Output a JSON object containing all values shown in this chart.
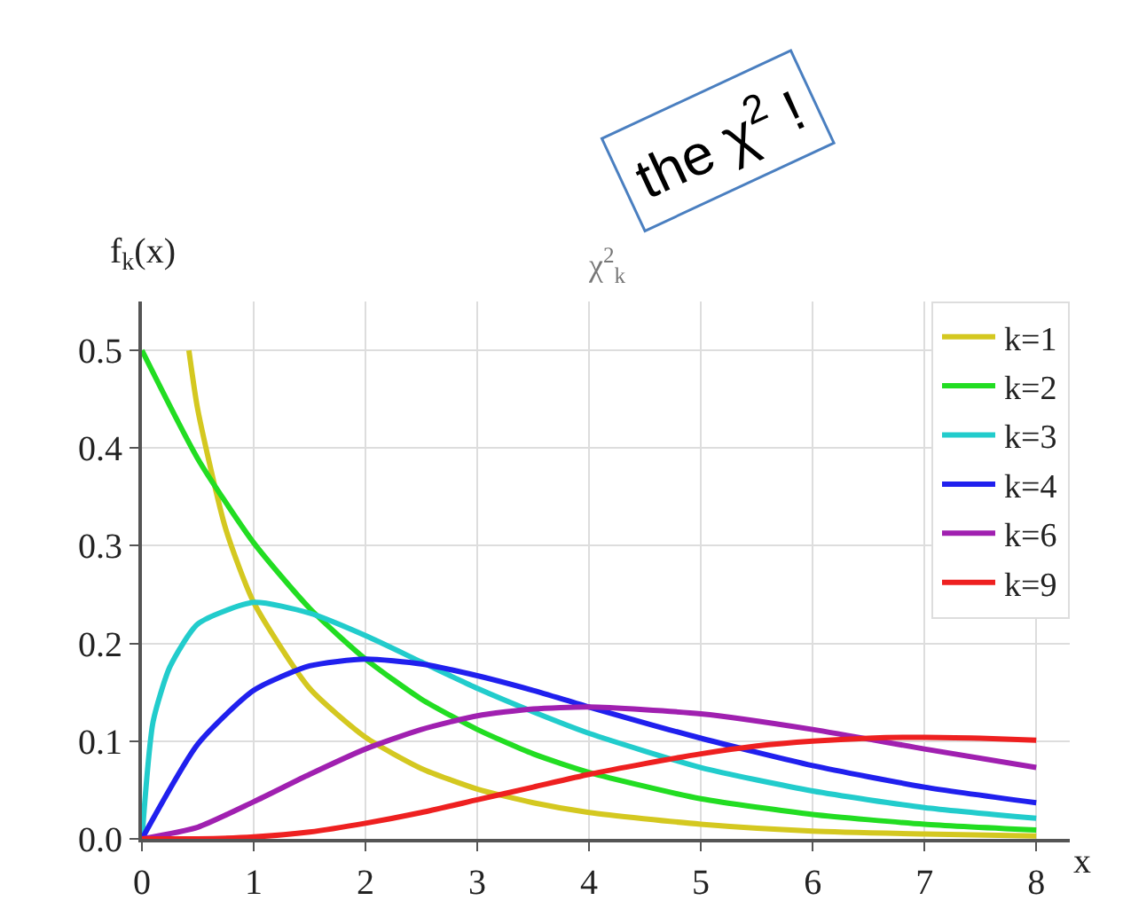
{
  "chart_data": {
    "type": "line",
    "title": "χ$^{2}$$_{k}$",
    "xlabel": "x",
    "ylabel": "f$_{k}$(x)",
    "annotations": [
      "the χ$^{2}$ !"
    ],
    "xlim": [
      0,
      8.3
    ],
    "ylim": [
      0,
      0.55
    ],
    "xticks": [
      0,
      1,
      2,
      3,
      4,
      5,
      6,
      7,
      8
    ],
    "yticks": [
      {
        "value": 0,
        "label": "0.0"
      },
      {
        "value": 0.1,
        "label": "0.1"
      },
      {
        "value": 0.2,
        "label": "0.2"
      },
      {
        "value": 0.3,
        "label": "0.3"
      },
      {
        "value": 0.4,
        "label": "0.4"
      },
      {
        "value": 0.5,
        "label": "0.5"
      }
    ],
    "grid": true,
    "legend": "top right",
    "marker": "none",
    "line_style": "solid",
    "series": [
      {
        "name": "k=1",
        "color": "#d4c820",
        "x": [
          0.42,
          0.5,
          0.75,
          1,
          1.5,
          2,
          2.5,
          3,
          3.5,
          4,
          5,
          6,
          7,
          8
        ],
        "values": [
          0.5,
          0.439,
          0.317,
          0.242,
          0.154,
          0.104,
          0.072,
          0.051,
          0.037,
          0.027,
          0.015,
          0.008,
          0.005,
          0.003
        ]
      },
      {
        "name": "k=2",
        "color": "#22dd22",
        "x": [
          0,
          0.5,
          1,
          1.5,
          2,
          2.5,
          3,
          3.5,
          4,
          5,
          6,
          7,
          8
        ],
        "values": [
          0.5,
          0.389,
          0.303,
          0.236,
          0.184,
          0.143,
          0.112,
          0.087,
          0.068,
          0.041,
          0.025,
          0.015,
          0.009
        ]
      },
      {
        "name": "k=3",
        "color": "#22cccc",
        "x": [
          0,
          0.1,
          0.25,
          0.5,
          1,
          1.5,
          2,
          2.5,
          3,
          3.5,
          4,
          5,
          6,
          7,
          8
        ],
        "values": [
          0,
          0.12,
          0.176,
          0.22,
          0.242,
          0.231,
          0.208,
          0.181,
          0.154,
          0.13,
          0.108,
          0.073,
          0.049,
          0.032,
          0.021
        ]
      },
      {
        "name": "k=4",
        "color": "#2020ee",
        "x": [
          0,
          0.5,
          1,
          1.5,
          2,
          2.5,
          3,
          3.5,
          4,
          5,
          6,
          7,
          8
        ],
        "values": [
          0,
          0.097,
          0.152,
          0.177,
          0.184,
          0.179,
          0.167,
          0.152,
          0.135,
          0.103,
          0.075,
          0.053,
          0.037
        ]
      },
      {
        "name": "k=6",
        "color": "#a020b0",
        "x": [
          0,
          0.5,
          1,
          1.5,
          2,
          2.5,
          3,
          3.5,
          4,
          5,
          6,
          7,
          8
        ],
        "values": [
          0,
          0.012,
          0.038,
          0.066,
          0.092,
          0.112,
          0.126,
          0.133,
          0.135,
          0.128,
          0.112,
          0.092,
          0.073
        ]
      },
      {
        "name": "k=9",
        "color": "#ee2020",
        "x": [
          0,
          0.5,
          1,
          1.5,
          2,
          2.5,
          3,
          3.5,
          4,
          4.5,
          5,
          5.5,
          6,
          6.5,
          7,
          7.5,
          8
        ],
        "values": [
          0,
          0,
          0.002,
          0.007,
          0.016,
          0.027,
          0.04,
          0.053,
          0.066,
          0.077,
          0.087,
          0.095,
          0.1,
          0.103,
          0.104,
          0.103,
          0.101
        ]
      }
    ]
  }
}
